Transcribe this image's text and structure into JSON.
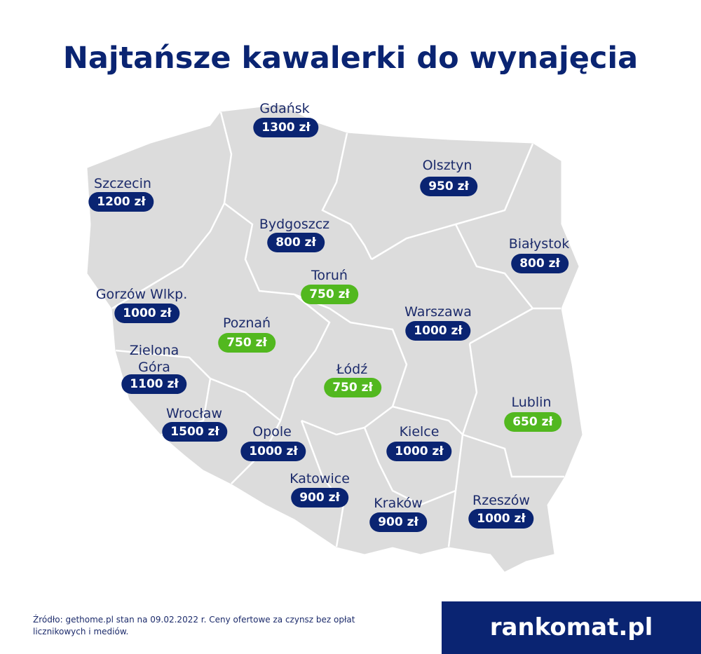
{
  "title": "Najtańsze kawalerki do wynajęcia",
  "cities": [
    {
      "name": "Gdańsk",
      "price": "1300 zł",
      "color": "#0a2472"
    },
    {
      "name": "Szczecin",
      "price": "1200 zł",
      "color": "#0a2472"
    },
    {
      "name": "Olsztyn",
      "price": "950 zł",
      "color": "#0a2472"
    },
    {
      "name": "Bydgoszcz",
      "price": "800 zł",
      "color": "#0a2472"
    },
    {
      "name": "Białystok",
      "price": "800 zł",
      "color": "#0a2472"
    },
    {
      "name": "Toruń",
      "price": "750 zł",
      "color": "#52b81f"
    },
    {
      "name": "Gorzów Wlkp.",
      "price": "1000 zł",
      "color": "#0a2472"
    },
    {
      "name": "Warszawa",
      "price": "1000 zł",
      "color": "#0a2472"
    },
    {
      "name": "Poznań",
      "price": "750 zł",
      "color": "#52b81f"
    },
    {
      "name": "Zielona Góra",
      "price": "1100 zł",
      "color": "#0a2472"
    },
    {
      "name": "Łódź",
      "price": "750 zł",
      "color": "#52b81f"
    },
    {
      "name": "Lublin",
      "price": "650 zł",
      "color": "#52b81f"
    },
    {
      "name": "Wrocław",
      "price": "1500 zł",
      "color": "#0a2472"
    },
    {
      "name": "Opole",
      "price": "1000 zł",
      "color": "#0a2472"
    },
    {
      "name": "Kielce",
      "price": "1000 zł",
      "color": "#0a2472"
    },
    {
      "name": "Katowice",
      "price": "900 zł",
      "color": "#0a2472"
    },
    {
      "name": "Kraków",
      "price": "900 zł",
      "color": "#0a2472"
    },
    {
      "name": "Rzeszów",
      "price": "1000 zł",
      "color": "#0a2472"
    }
  ],
  "source": "Źródło: gethome.pl stan na 09.02.2022 r. Ceny ofertowe za czynsz bez opłat licznikowych i mediów.",
  "logo": "rankomat.pl"
}
